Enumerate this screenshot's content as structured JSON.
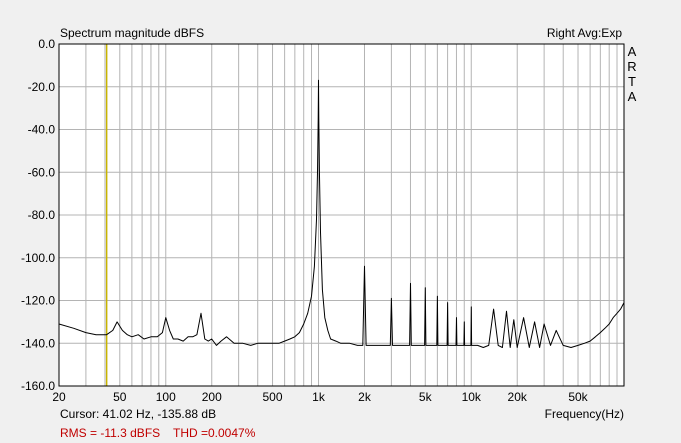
{
  "window": {
    "title": "Spectrum magnitude dBFS",
    "channel_info": "Right Avg:Exp",
    "brand": [
      "A",
      "R",
      "T",
      "A"
    ]
  },
  "status": {
    "cursor": "Cursor: 41.02 Hz, -135.88 dB",
    "rms": "RMS =  -11.3 dBFS",
    "thd": "THD =0.0047%"
  },
  "colors": {
    "background": "#f0f0f0",
    "plot_background": "#ffffff",
    "grid": "#b4b4b4",
    "trace": "#000000",
    "cursor_line": "#c8b400",
    "status_text": "#c00000"
  },
  "chart_data": {
    "type": "line",
    "title": "Spectrum magnitude dBFS",
    "xlabel": "Frequency(Hz)",
    "ylabel": "",
    "x_scale": "log",
    "xlim": [
      20,
      100000
    ],
    "ylim": [
      -160,
      0
    ],
    "grid": true,
    "x_ticks": [
      {
        "value": 20,
        "label": "20"
      },
      {
        "value": 50,
        "label": "50"
      },
      {
        "value": 100,
        "label": "100"
      },
      {
        "value": 200,
        "label": "200"
      },
      {
        "value": 500,
        "label": "500"
      },
      {
        "value": 1000,
        "label": "1k"
      },
      {
        "value": 2000,
        "label": "2k"
      },
      {
        "value": 5000,
        "label": "5k"
      },
      {
        "value": 10000,
        "label": "10k"
      },
      {
        "value": 20000,
        "label": "20k"
      },
      {
        "value": 50000,
        "label": "50k"
      }
    ],
    "y_ticks": [
      {
        "value": 0,
        "label": "0.0"
      },
      {
        "value": -20,
        "label": "-20.0"
      },
      {
        "value": -40,
        "label": "-40.0"
      },
      {
        "value": -60,
        "label": "-60.0"
      },
      {
        "value": -80,
        "label": "-80.0"
      },
      {
        "value": -100,
        "label": "-100.0"
      },
      {
        "value": -120,
        "label": "-120.0"
      },
      {
        "value": -140,
        "label": "-140.0"
      },
      {
        "value": -160,
        "label": "-160.0"
      }
    ],
    "cursor": {
      "x": 41.02,
      "y": -135.88
    },
    "series": [
      {
        "x": [
          20,
          25,
          30,
          35,
          41,
          45,
          48,
          52,
          56,
          60,
          66,
          72,
          80,
          88,
          95,
          100,
          106,
          112,
          120,
          130,
          140,
          150,
          160,
          170,
          180,
          190,
          200,
          215,
          230,
          250,
          280,
          320,
          360,
          400,
          450,
          500,
          550,
          600,
          650,
          700,
          750,
          800,
          850,
          900,
          940,
          970,
          985,
          995,
          1000,
          1005,
          1015,
          1030,
          1060,
          1100,
          1150,
          1200,
          1300,
          1400,
          1600,
          1800,
          1950,
          2000,
          2050,
          2300,
          2600,
          2950,
          3000,
          3050,
          3500,
          3950,
          4000,
          4050,
          4500,
          4950,
          5000,
          5050,
          5500,
          5950,
          6000,
          6050,
          6500,
          6950,
          7000,
          7050,
          7500,
          7950,
          8000,
          8050,
          8500,
          8950,
          9000,
          9050,
          9500,
          9950,
          10000,
          10050,
          11000,
          12000,
          13000,
          14000,
          15000,
          16000,
          17000,
          18000,
          19000,
          20000,
          22000,
          24000,
          26000,
          28000,
          30000,
          33000,
          36000,
          40000,
          45000,
          50000,
          55000,
          60000,
          65000,
          70000,
          75000,
          80000,
          85000,
          90000,
          95000,
          100000
        ],
        "y": [
          -131,
          -133,
          -135,
          -136,
          -136,
          -134,
          -130,
          -134,
          -136,
          -137,
          -136,
          -138,
          -137,
          -137,
          -135,
          -128,
          -134,
          -138,
          -138,
          -139,
          -137,
          -137,
          -136,
          -126,
          -138,
          -139,
          -138,
          -141,
          -139,
          -137,
          -140,
          -140,
          -141,
          -140,
          -140,
          -140,
          -140,
          -139,
          -138,
          -137,
          -135,
          -131,
          -126,
          -118,
          -104,
          -82,
          -60,
          -35,
          -17,
          -35,
          -62,
          -88,
          -115,
          -128,
          -134,
          -138,
          -139,
          -140,
          -140,
          -141,
          -141,
          -104,
          -141,
          -141,
          -141,
          -141,
          -119,
          -141,
          -141,
          -141,
          -112,
          -141,
          -141,
          -141,
          -114,
          -141,
          -141,
          -141,
          -118,
          -141,
          -141,
          -141,
          -121,
          -141,
          -141,
          -141,
          -128,
          -141,
          -141,
          -141,
          -130,
          -141,
          -141,
          -141,
          -123,
          -141,
          -141,
          -142,
          -141,
          -124,
          -141,
          -142,
          -125,
          -142,
          -129,
          -142,
          -128,
          -142,
          -130,
          -142,
          -131,
          -141,
          -134,
          -141,
          -142,
          -141,
          -140,
          -139,
          -137,
          -135,
          -133,
          -131,
          -128,
          -126,
          -124,
          -121
        ]
      }
    ]
  }
}
